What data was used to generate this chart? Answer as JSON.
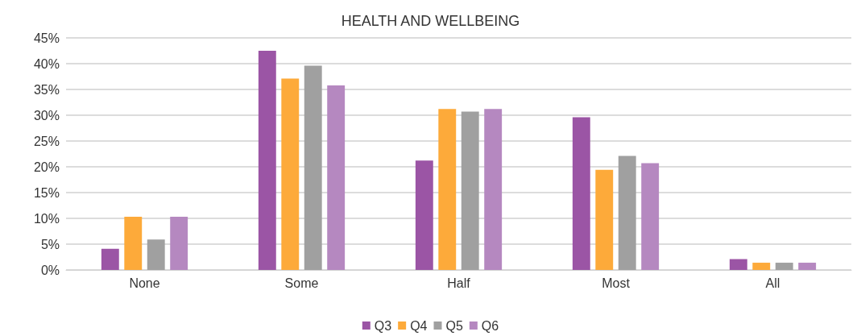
{
  "chart_data": {
    "type": "bar",
    "title": "HEALTH AND WELLBEING",
    "categories": [
      "None",
      "Some",
      "Half",
      "Most",
      "All"
    ],
    "series": [
      {
        "name": "Q3",
        "color": "#9b55a5",
        "values": [
          4.1,
          42.5,
          21.2,
          29.6,
          2.1
        ]
      },
      {
        "name": "Q4",
        "color": "#fdaa3a",
        "values": [
          10.3,
          37.1,
          31.2,
          19.4,
          1.4
        ]
      },
      {
        "name": "Q5",
        "color": "#a0a0a0",
        "values": [
          5.9,
          39.6,
          30.7,
          22.1,
          1.4
        ]
      },
      {
        "name": "Q6",
        "color": "#b588c0",
        "values": [
          10.3,
          35.8,
          31.2,
          20.7,
          1.4
        ]
      }
    ],
    "ylim": [
      0,
      45
    ],
    "yticks": [
      {
        "value": 0,
        "label": "0%"
      },
      {
        "value": 5,
        "label": "5%"
      },
      {
        "value": 10,
        "label": "10%"
      },
      {
        "value": 15,
        "label": "15%"
      },
      {
        "value": 20,
        "label": "20%"
      },
      {
        "value": 25,
        "label": "25%"
      },
      {
        "value": 30,
        "label": "30%"
      },
      {
        "value": 35,
        "label": "35%"
      },
      {
        "value": 40,
        "label": "40%"
      },
      {
        "value": 45,
        "label": "45%"
      }
    ],
    "grid": "y",
    "legend": "bottom"
  }
}
